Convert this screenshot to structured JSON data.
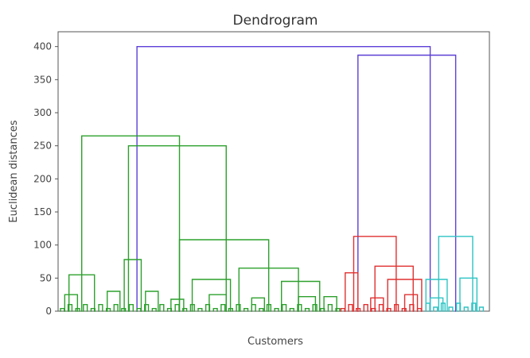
{
  "chart_data": {
    "type": "dendrogram",
    "title": "Dendrogram",
    "xlabel": "Customers",
    "ylabel": "Euclidean distances",
    "ylim": [
      0,
      420
    ],
    "yticks": [
      0,
      50,
      100,
      150,
      200,
      250,
      300,
      350,
      400
    ],
    "colors": {
      "green": "#2ca02c",
      "red": "#e03030",
      "cyan": "#2ec4c4",
      "link": "#5b3fd6"
    },
    "links": [
      {
        "color": "link",
        "left": 0.18,
        "right": 0.87,
        "height": 400
      },
      {
        "color": "link",
        "left": 0.7,
        "right": 0.93,
        "height": 387
      },
      {
        "color": "green",
        "left": 0.05,
        "right": 0.28,
        "height": 265
      },
      {
        "color": "green",
        "left": 0.16,
        "right": 0.39,
        "height": 250
      },
      {
        "color": "green",
        "left": 0.28,
        "right": 0.49,
        "height": 108
      },
      {
        "color": "green",
        "left": 0.42,
        "right": 0.56,
        "height": 65
      },
      {
        "color": "green",
        "left": 0.52,
        "right": 0.61,
        "height": 45
      },
      {
        "color": "green",
        "left": 0.31,
        "right": 0.4,
        "height": 48
      },
      {
        "color": "green",
        "left": 0.02,
        "right": 0.08,
        "height": 55
      },
      {
        "color": "green",
        "left": 0.15,
        "right": 0.19,
        "height": 78
      },
      {
        "color": "green",
        "left": 0.01,
        "right": 0.04,
        "height": 25
      },
      {
        "color": "green",
        "left": 0.11,
        "right": 0.14,
        "height": 30
      },
      {
        "color": "green",
        "left": 0.2,
        "right": 0.23,
        "height": 30
      },
      {
        "color": "green",
        "left": 0.26,
        "right": 0.29,
        "height": 18
      },
      {
        "color": "green",
        "left": 0.35,
        "right": 0.39,
        "height": 25
      },
      {
        "color": "green",
        "left": 0.45,
        "right": 0.48,
        "height": 20
      },
      {
        "color": "green",
        "left": 0.56,
        "right": 0.6,
        "height": 22
      },
      {
        "color": "green",
        "left": 0.62,
        "right": 0.65,
        "height": 22
      },
      {
        "color": "red",
        "left": 0.69,
        "right": 0.79,
        "height": 113
      },
      {
        "color": "red",
        "left": 0.67,
        "right": 0.7,
        "height": 58
      },
      {
        "color": "red",
        "left": 0.74,
        "right": 0.83,
        "height": 68
      },
      {
        "color": "red",
        "left": 0.77,
        "right": 0.85,
        "height": 48
      },
      {
        "color": "red",
        "left": 0.73,
        "right": 0.76,
        "height": 20
      },
      {
        "color": "red",
        "left": 0.81,
        "right": 0.84,
        "height": 25
      },
      {
        "color": "cyan",
        "left": 0.89,
        "right": 0.97,
        "height": 113
      },
      {
        "color": "cyan",
        "left": 0.86,
        "right": 0.91,
        "height": 48
      },
      {
        "color": "cyan",
        "left": 0.94,
        "right": 0.98,
        "height": 50
      },
      {
        "color": "cyan",
        "left": 0.87,
        "right": 0.9,
        "height": 20
      }
    ],
    "leaves": [
      {
        "color": "green",
        "from": 0.0,
        "to": 0.66,
        "step": 0.009
      },
      {
        "color": "red",
        "from": 0.66,
        "to": 0.86,
        "step": 0.009
      },
      {
        "color": "cyan",
        "from": 0.86,
        "to": 1.0,
        "step": 0.009
      }
    ]
  }
}
